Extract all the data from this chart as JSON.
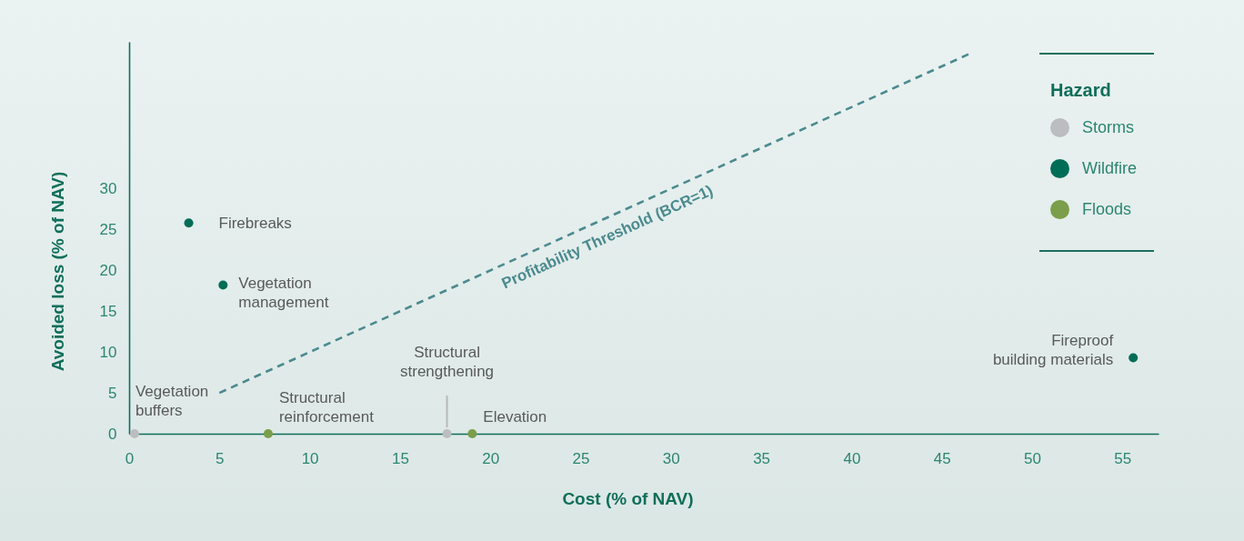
{
  "chart_data": {
    "type": "scatter",
    "xlabel": "Cost (% of NAV)",
    "ylabel": "Avoided loss (% of NAV)",
    "legend_title": "Hazard",
    "legend": "top right",
    "marker": "circle",
    "xlim": [
      0,
      57
    ],
    "ylim": [
      0,
      48
    ],
    "xticks": [
      0,
      5,
      10,
      15,
      20,
      25,
      30,
      35,
      40,
      45,
      50,
      55
    ],
    "yticks": [
      0,
      5,
      10,
      15,
      20,
      25,
      30
    ],
    "series": [
      {
        "name": "Storms",
        "color": "#bcbdc0",
        "x": [
          0.3,
          17.6
        ],
        "values": [
          0,
          0
        ]
      },
      {
        "name": "Wildfire",
        "color": "#006d57",
        "x": [
          3.3,
          5.2,
          55.6
        ],
        "values": [
          25.8,
          18.2,
          9.3
        ]
      },
      {
        "name": "Floods",
        "color": "#7a9e4a",
        "x": [
          7.7,
          19.0
        ],
        "values": [
          0,
          0
        ]
      },
      {
        "type": "line",
        "name": "Profitability Threshold (BCR=1)",
        "color": "#4b8a8e",
        "x": [
          5,
          46.5
        ],
        "values": [
          5,
          46.5
        ],
        "line_style": "dashed",
        "marker": "none"
      }
    ],
    "annotations": [
      {
        "text": "Firebreaks",
        "x": 3.3,
        "y": 25.8
      },
      {
        "text": "Vegetation management",
        "x": 5.2,
        "y": 18.2
      },
      {
        "text": "Vegetation buffers",
        "x": 0.3,
        "y": 0
      },
      {
        "text": "Structural reinforcement",
        "x": 7.7,
        "y": 0
      },
      {
        "text": "Structural strengthening",
        "x": 17.6,
        "y": 0
      },
      {
        "text": "Elevation",
        "x": 19.0,
        "y": 0
      },
      {
        "text": "Fireproof building materials",
        "x": 55.6,
        "y": 9.3
      }
    ]
  }
}
